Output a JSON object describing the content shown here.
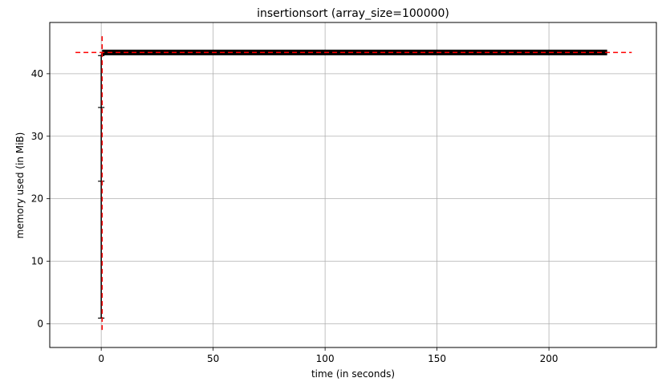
{
  "chart_data": {
    "type": "line",
    "title": "insertionsort (array_size=100000)",
    "xlabel": "time (in seconds)",
    "ylabel": "memory used (in MiB)",
    "xlim": [
      -23,
      248
    ],
    "ylim": [
      -3.8,
      48.2
    ],
    "xticks": [
      0,
      50,
      100,
      150,
      200
    ],
    "yticks": [
      0,
      10,
      20,
      30,
      40
    ],
    "grid": true,
    "colors": {
      "line": "#000000",
      "marker_line": "#ff0000",
      "grid": "#b0b0b0",
      "axes": "#000000"
    },
    "series": [
      {
        "x": [
          0,
          0,
          0,
          0,
          0.4,
          226
        ],
        "y": [
          0.9,
          22.8,
          34.6,
          42.9,
          43.4,
          43.4
        ]
      }
    ],
    "markers": {
      "max_memory": 43.4,
      "max_time": 0.4
    }
  }
}
